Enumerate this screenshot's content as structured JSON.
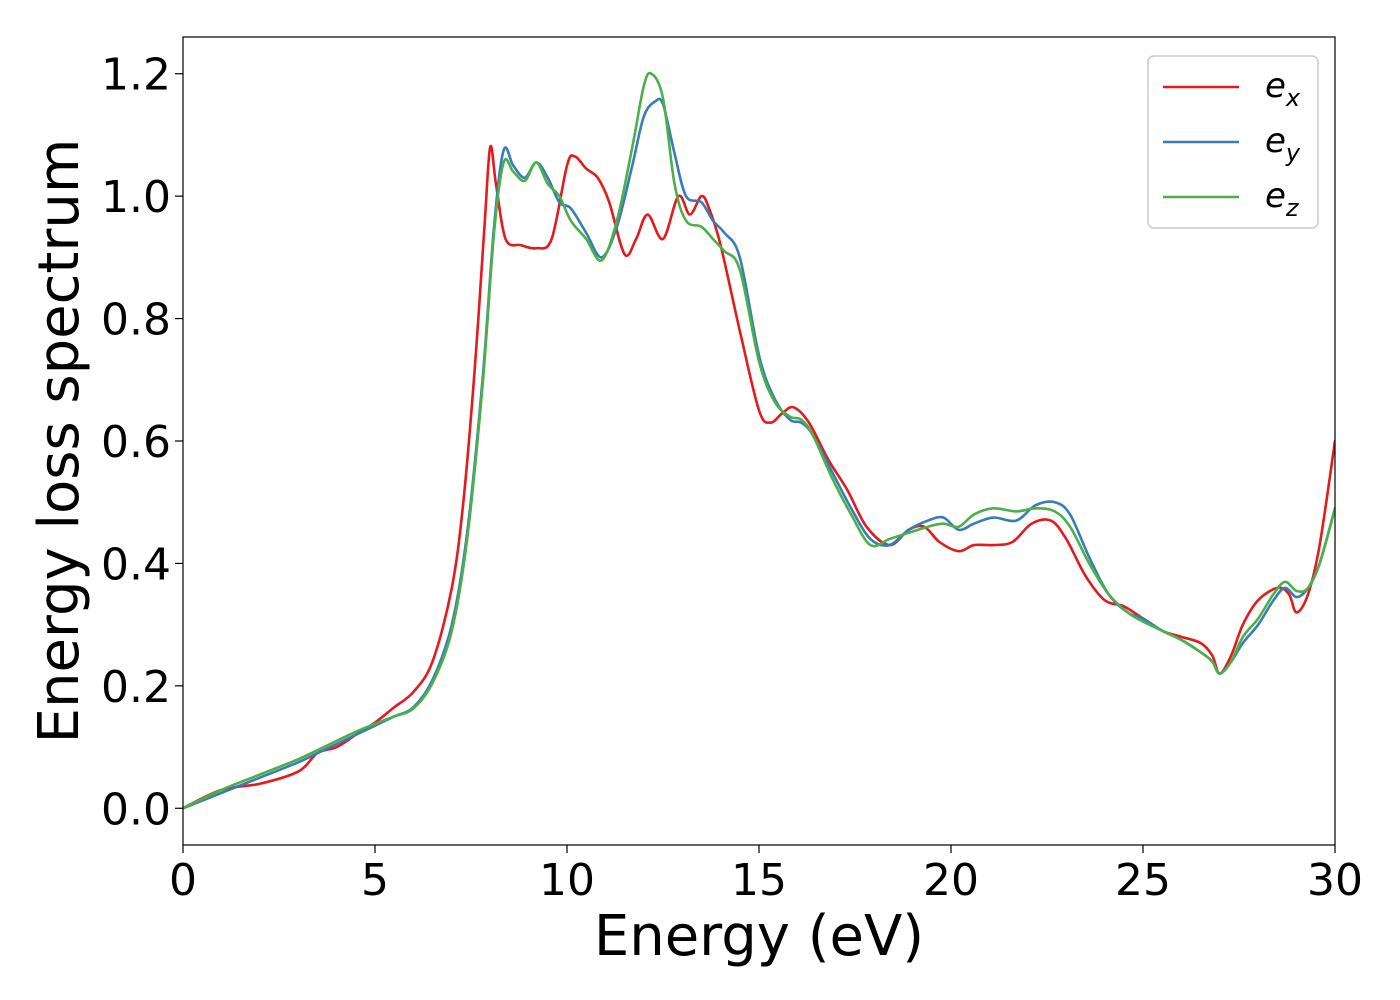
{
  "chart_data": {
    "type": "line",
    "xlabel": "Energy (eV)",
    "ylabel": "Energy loss spectrum",
    "xlim": [
      0,
      30
    ],
    "ylim": [
      -0.06,
      1.26
    ],
    "xticks": [
      0,
      5,
      10,
      15,
      20,
      25,
      30
    ],
    "xtick_labels": [
      "0",
      "5",
      "10",
      "15",
      "20",
      "25",
      "30"
    ],
    "yticks": [
      0.0,
      0.2,
      0.4,
      0.6,
      0.8,
      1.0,
      1.2
    ],
    "ytick_labels": [
      "0.0",
      "0.2",
      "0.4",
      "0.6",
      "0.8",
      "1.0",
      "1.2"
    ],
    "grid": false,
    "legend_position": "top-right",
    "series": [
      {
        "name": "e_x",
        "label_main": "e",
        "label_sub": "x",
        "color": "#e41a1c",
        "x": [
          0,
          1,
          2,
          3,
          3.5,
          4,
          4.5,
          5,
          5.5,
          6,
          6.5,
          7,
          7.3,
          7.6,
          7.85,
          8.0,
          8.15,
          8.4,
          8.8,
          9.2,
          9.6,
          10.0,
          10.2,
          10.5,
          10.8,
          11.1,
          11.5,
          11.8,
          12.1,
          12.5,
          12.9,
          13.2,
          13.5,
          13.7,
          14,
          14.5,
          15,
          15.3,
          15.6,
          15.9,
          16.3,
          16.8,
          17.3,
          17.8,
          18.4,
          18.9,
          19.3,
          19.7,
          20.2,
          20.6,
          21.1,
          21.6,
          22.1,
          22.6,
          23,
          23.5,
          24,
          24.5,
          25,
          25.5,
          26,
          26.5,
          26.8,
          27,
          27.3,
          27.6,
          28,
          28.5,
          28.8,
          29,
          29.3,
          29.6,
          30
        ],
        "y": [
          0,
          0.03,
          0.04,
          0.06,
          0.09,
          0.1,
          0.12,
          0.14,
          0.165,
          0.19,
          0.24,
          0.36,
          0.5,
          0.72,
          0.95,
          1.08,
          1.02,
          0.93,
          0.92,
          0.915,
          0.93,
          1.05,
          1.065,
          1.045,
          1.03,
          0.99,
          0.905,
          0.93,
          0.97,
          0.93,
          1.0,
          0.97,
          1.0,
          0.98,
          0.92,
          0.78,
          0.65,
          0.63,
          0.645,
          0.655,
          0.63,
          0.57,
          0.52,
          0.46,
          0.43,
          0.455,
          0.46,
          0.435,
          0.42,
          0.43,
          0.43,
          0.435,
          0.465,
          0.47,
          0.44,
          0.38,
          0.34,
          0.33,
          0.31,
          0.29,
          0.28,
          0.27,
          0.25,
          0.22,
          0.25,
          0.3,
          0.34,
          0.36,
          0.35,
          0.32,
          0.35,
          0.43,
          0.6
        ]
      },
      {
        "name": "e_y",
        "label_main": "e",
        "label_sub": "y",
        "color": "#377eb8",
        "x": [
          0,
          1,
          2,
          3,
          3.5,
          4,
          4.5,
          5,
          5.5,
          6,
          6.5,
          7,
          7.4,
          7.8,
          8.1,
          8.35,
          8.6,
          8.9,
          9.2,
          9.5,
          9.8,
          10.1,
          10.5,
          10.9,
          11.3,
          11.7,
          12.0,
          12.3,
          12.5,
          12.8,
          13.1,
          13.5,
          13.8,
          14.1,
          14.5,
          15,
          15.4,
          15.8,
          16.1,
          16.4,
          16.9,
          17.4,
          17.9,
          18.4,
          18.9,
          19.4,
          19.8,
          20.2,
          20.6,
          21.1,
          21.7,
          22.2,
          22.7,
          23.1,
          23.6,
          24.1,
          24.6,
          25,
          25.5,
          26,
          26.5,
          26.8,
          27,
          27.3,
          27.6,
          28,
          28.4,
          28.7,
          29,
          29.3,
          29.6,
          30
        ],
        "y": [
          0,
          0.025,
          0.05,
          0.075,
          0.09,
          0.105,
          0.12,
          0.135,
          0.15,
          0.165,
          0.21,
          0.3,
          0.45,
          0.7,
          0.95,
          1.075,
          1.05,
          1.03,
          1.055,
          1.03,
          0.99,
          0.98,
          0.94,
          0.9,
          0.95,
          1.05,
          1.13,
          1.155,
          1.15,
          1.07,
          1.0,
          0.99,
          0.96,
          0.94,
          0.9,
          0.74,
          0.67,
          0.635,
          0.63,
          0.61,
          0.55,
          0.49,
          0.44,
          0.43,
          0.455,
          0.47,
          0.475,
          0.455,
          0.465,
          0.475,
          0.47,
          0.495,
          0.5,
          0.48,
          0.41,
          0.35,
          0.32,
          0.31,
          0.29,
          0.275,
          0.255,
          0.24,
          0.22,
          0.24,
          0.27,
          0.3,
          0.34,
          0.36,
          0.345,
          0.36,
          0.4,
          0.49
        ]
      },
      {
        "name": "e_z",
        "label_main": "e",
        "label_sub": "z",
        "color": "#4daf4a",
        "x": [
          0,
          1,
          2,
          3,
          3.5,
          4,
          4.5,
          5,
          5.5,
          6,
          6.5,
          7,
          7.4,
          7.8,
          8.1,
          8.35,
          8.6,
          8.9,
          9.2,
          9.5,
          9.8,
          10.1,
          10.5,
          10.9,
          11.3,
          11.7,
          12.0,
          12.2,
          12.5,
          12.8,
          13.1,
          13.5,
          13.8,
          14.1,
          14.5,
          15,
          15.4,
          15.8,
          16.1,
          16.4,
          16.9,
          17.4,
          17.9,
          18.4,
          18.9,
          19.4,
          19.8,
          20.2,
          20.6,
          21.1,
          21.7,
          22.2,
          22.7,
          23.1,
          23.6,
          24.1,
          24.6,
          25,
          25.5,
          26,
          26.5,
          26.8,
          27,
          27.3,
          27.6,
          28,
          28.4,
          28.7,
          29,
          29.3,
          29.6,
          30
        ],
        "y": [
          0,
          0.03,
          0.055,
          0.08,
          0.095,
          0.11,
          0.125,
          0.138,
          0.15,
          0.163,
          0.205,
          0.29,
          0.44,
          0.69,
          0.94,
          1.055,
          1.04,
          1.025,
          1.055,
          1.02,
          1.0,
          0.96,
          0.93,
          0.895,
          0.96,
          1.08,
          1.18,
          1.2,
          1.16,
          1.02,
          0.96,
          0.95,
          0.93,
          0.91,
          0.88,
          0.73,
          0.665,
          0.64,
          0.635,
          0.61,
          0.54,
          0.48,
          0.43,
          0.44,
          0.45,
          0.46,
          0.465,
          0.46,
          0.48,
          0.49,
          0.485,
          0.49,
          0.485,
          0.46,
          0.4,
          0.35,
          0.32,
          0.305,
          0.29,
          0.275,
          0.255,
          0.24,
          0.22,
          0.24,
          0.28,
          0.31,
          0.35,
          0.37,
          0.355,
          0.36,
          0.4,
          0.49
        ]
      }
    ]
  }
}
